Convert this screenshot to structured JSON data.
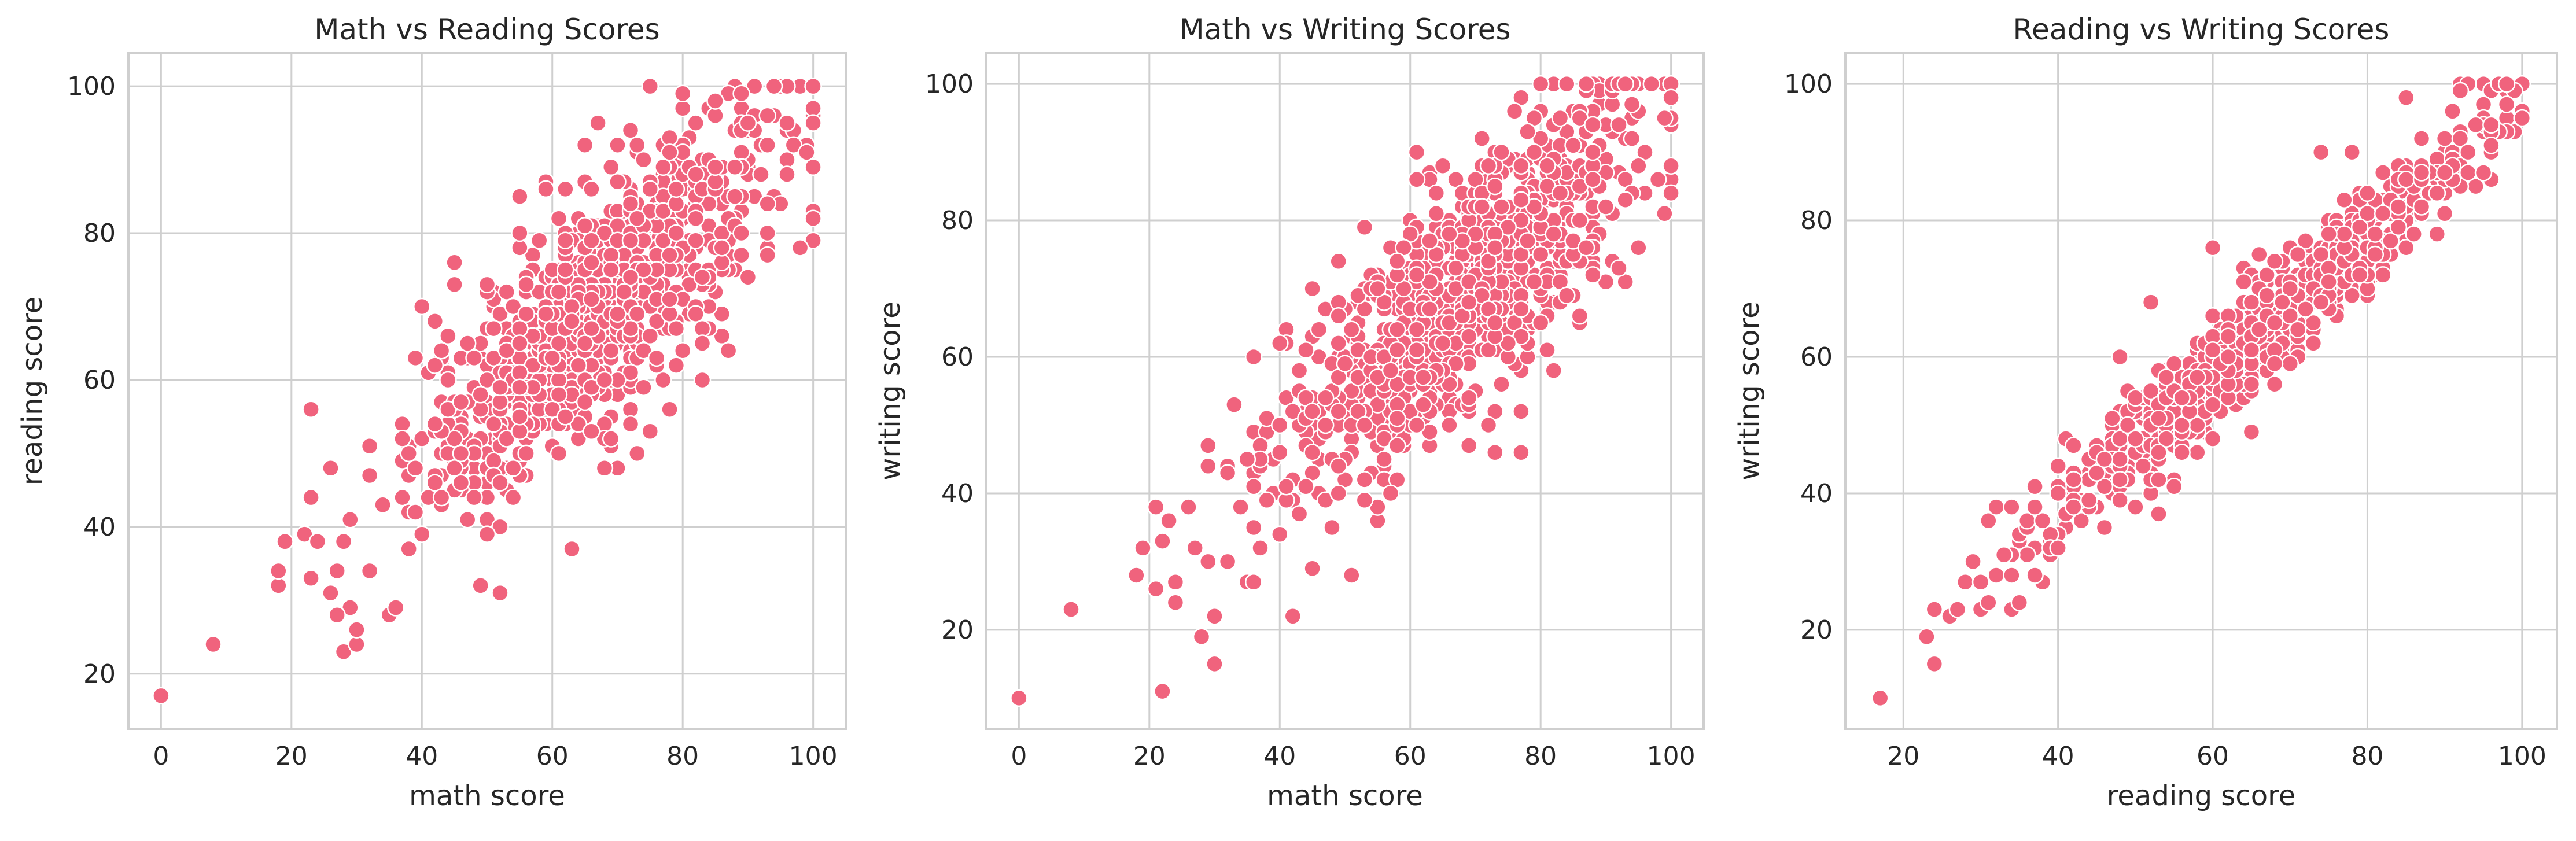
{
  "colors": {
    "point": "#f0637d",
    "grid": "#cfcfcf",
    "text": "#262626",
    "background": "#ffffff"
  },
  "chart_data": [
    {
      "type": "scatter",
      "title": "Math vs Reading Scores",
      "xlabel": "math score",
      "ylabel": "reading score",
      "xlim": [
        -5,
        105
      ],
      "ylim": [
        12.5,
        104.5
      ],
      "xticks": [
        0,
        20,
        40,
        60,
        80,
        100
      ],
      "yticks": [
        20,
        40,
        60,
        80,
        100
      ],
      "grid": true,
      "legend": "none",
      "trend": {
        "slope": 0.79,
        "intercept": 17,
        "spread": 8,
        "x_range": [
          18,
          100
        ]
      },
      "points_anchor": [
        [
          0,
          17
        ],
        [
          8,
          24
        ],
        [
          18,
          32
        ],
        [
          19,
          38
        ],
        [
          22,
          39
        ],
        [
          23,
          44
        ],
        [
          24,
          38
        ],
        [
          26,
          31
        ],
        [
          27,
          34
        ],
        [
          28,
          23
        ],
        [
          29,
          29
        ],
        [
          29,
          41
        ],
        [
          30,
          24
        ],
        [
          30,
          26
        ],
        [
          32,
          34
        ],
        [
          32,
          51
        ],
        [
          35,
          28
        ],
        [
          36,
          29
        ],
        [
          40,
          39
        ],
        [
          45,
          73
        ],
        [
          52,
          31
        ],
        [
          55,
          85
        ],
        [
          62,
          86
        ],
        [
          63,
          37
        ],
        [
          65,
          92
        ],
        [
          70,
          48
        ],
        [
          75,
          100
        ],
        [
          80,
          97
        ],
        [
          88,
          100
        ],
        [
          94,
          100
        ],
        [
          98,
          100
        ],
        [
          100,
          100
        ],
        [
          99,
          92
        ],
        [
          94,
          96
        ],
        [
          90,
          74
        ],
        [
          86,
          66
        ],
        [
          83,
          60
        ],
        [
          78,
          56
        ],
        [
          85,
          72
        ],
        [
          75,
          53
        ],
        [
          70,
          58
        ]
      ]
    },
    {
      "type": "scatter",
      "title": "Math vs Writing Scores",
      "xlabel": "math score",
      "ylabel": "writing score",
      "xlim": [
        -5,
        105
      ],
      "ylim": [
        5.5,
        104.5
      ],
      "xticks": [
        0,
        20,
        40,
        60,
        80,
        100
      ],
      "yticks": [
        20,
        40,
        60,
        80,
        100
      ],
      "grid": true,
      "legend": "none",
      "trend": {
        "slope": 0.84,
        "intercept": 12,
        "spread": 8.5,
        "x_range": [
          18,
          100
        ]
      },
      "points_anchor": [
        [
          0,
          10
        ],
        [
          8,
          23
        ],
        [
          18,
          28
        ],
        [
          19,
          32
        ],
        [
          22,
          33
        ],
        [
          23,
          36
        ],
        [
          24,
          27
        ],
        [
          26,
          38
        ],
        [
          27,
          32
        ],
        [
          28,
          19
        ],
        [
          29,
          30
        ],
        [
          29,
          47
        ],
        [
          30,
          15
        ],
        [
          30,
          22
        ],
        [
          32,
          44
        ],
        [
          35,
          27
        ],
        [
          36,
          27
        ],
        [
          36,
          60
        ],
        [
          40,
          34
        ],
        [
          41,
          64
        ],
        [
          45,
          70
        ],
        [
          53,
          79
        ],
        [
          55,
          36
        ],
        [
          63,
          87
        ],
        [
          70,
          55
        ],
        [
          77,
          98
        ],
        [
          80,
          96
        ],
        [
          84,
          100
        ],
        [
          89,
          100
        ],
        [
          95,
          100
        ],
        [
          100,
          100
        ],
        [
          100,
          86
        ],
        [
          99,
          81
        ],
        [
          96,
          84
        ],
        [
          93,
          71
        ],
        [
          86,
          65
        ],
        [
          81,
          61
        ],
        [
          77,
          58
        ],
        [
          73,
          52
        ]
      ]
    },
    {
      "type": "scatter",
      "title": "Reading vs Writing Scores",
      "xlabel": "reading score",
      "ylabel": "writing score",
      "xlim": [
        12.5,
        104.5
      ],
      "ylim": [
        5.5,
        104.5
      ],
      "xticks": [
        20,
        40,
        60,
        80,
        100
      ],
      "yticks": [
        20,
        40,
        60,
        80,
        100
      ],
      "grid": true,
      "legend": "none",
      "trend": {
        "slope": 1.03,
        "intercept": -5,
        "spread": 3.8,
        "x_range": [
          23,
          100
        ]
      },
      "points_anchor": [
        [
          17,
          10
        ],
        [
          23,
          19
        ],
        [
          24,
          15
        ],
        [
          24,
          23
        ],
        [
          26,
          22
        ],
        [
          28,
          27
        ],
        [
          29,
          30
        ],
        [
          30,
          27
        ],
        [
          31,
          36
        ],
        [
          32,
          38
        ],
        [
          32,
          28
        ],
        [
          34,
          38
        ],
        [
          35,
          33
        ],
        [
          37,
          32
        ],
        [
          37,
          38
        ],
        [
          38,
          27
        ],
        [
          39,
          34
        ],
        [
          40,
          44
        ],
        [
          41,
          48
        ],
        [
          42,
          47
        ],
        [
          48,
          60
        ],
        [
          52,
          68
        ],
        [
          60,
          76
        ],
        [
          64,
          73
        ],
        [
          74,
          90
        ],
        [
          78,
          90
        ],
        [
          85,
          98
        ],
        [
          92,
          100
        ],
        [
          95,
          100
        ],
        [
          96,
          99
        ],
        [
          100,
          100
        ],
        [
          100,
          95
        ],
        [
          99,
          93
        ],
        [
          96,
          86
        ],
        [
          88,
          86
        ],
        [
          82,
          76
        ]
      ]
    }
  ]
}
